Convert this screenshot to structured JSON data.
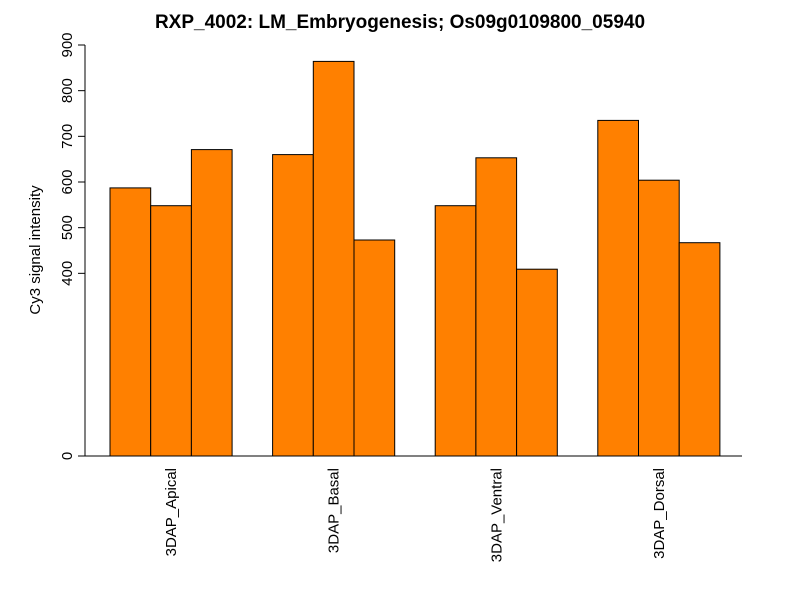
{
  "chart_data": {
    "type": "bar",
    "title": "RXP_4002: LM_Embryogenesis; Os09g0109800_05940",
    "xlabel": "",
    "ylabel": "Cy3 signal intensity",
    "y_ticks": [
      0,
      400,
      500,
      600,
      700,
      800,
      900
    ],
    "ylim": [
      0,
      900
    ],
    "groups": [
      {
        "label": "3DAP_Apical",
        "values": [
          587,
          548,
          671
        ]
      },
      {
        "label": "3DAP_Basal",
        "values": [
          660,
          864,
          473
        ]
      },
      {
        "label": "3DAP_Ventral",
        "values": [
          548,
          653,
          409
        ]
      },
      {
        "label": "3DAP_Dorsal",
        "values": [
          735,
          604,
          467
        ]
      }
    ],
    "bar_color": "#ff8000",
    "grid": false,
    "legend": "none"
  }
}
